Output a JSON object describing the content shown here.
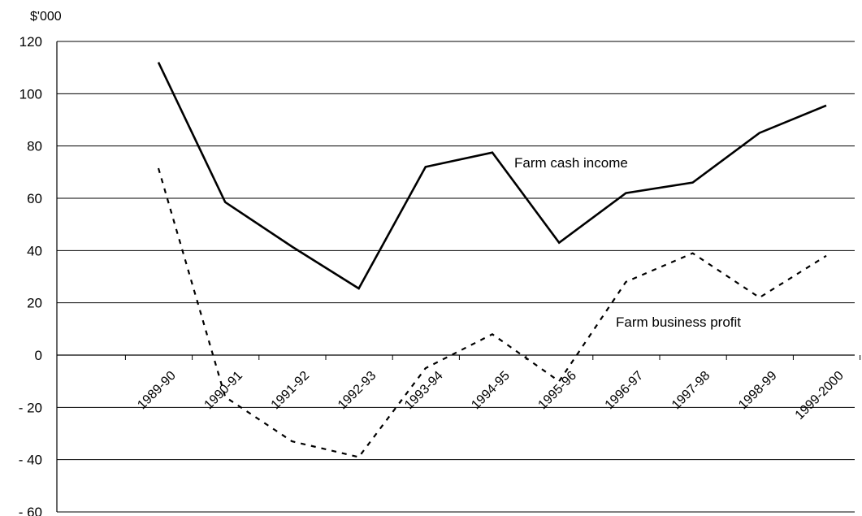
{
  "chart_data": {
    "type": "line",
    "unit_label": "$'000",
    "categories": [
      "1989-90",
      "1990-91",
      "1991-92",
      "1992-93",
      "1993-94",
      "1994-95",
      "1995-96",
      "1996-97",
      "1997-98",
      "1998-99",
      "1999-2000"
    ],
    "series": [
      {
        "name": "Farm cash income",
        "values": [
          112,
          58.5,
          41.5,
          25.5,
          72,
          77.5,
          43,
          62,
          66,
          85,
          95.5
        ],
        "color": "#000000",
        "style": "solid"
      },
      {
        "name": "Farm business profit",
        "values": [
          71.5,
          -16,
          -33,
          -39,
          -5,
          8,
          -10,
          28,
          39,
          22,
          38
        ],
        "color": "#000000",
        "style": "dashed"
      }
    ],
    "ylim": [
      -60,
      120
    ],
    "yticks": [
      {
        "value": 120,
        "label": "120"
      },
      {
        "value": 100,
        "label": "100"
      },
      {
        "value": 80,
        "label": "80"
      },
      {
        "value": 60,
        "label": "60"
      },
      {
        "value": 40,
        "label": "40"
      },
      {
        "value": 20,
        "label": "20"
      },
      {
        "value": 0,
        "label": "0"
      },
      {
        "value": -20,
        "label": "- 20"
      },
      {
        "value": -40,
        "label": "- 40"
      },
      {
        "value": -60,
        "label": "- 60"
      }
    ],
    "grid": true,
    "legend": "none"
  }
}
